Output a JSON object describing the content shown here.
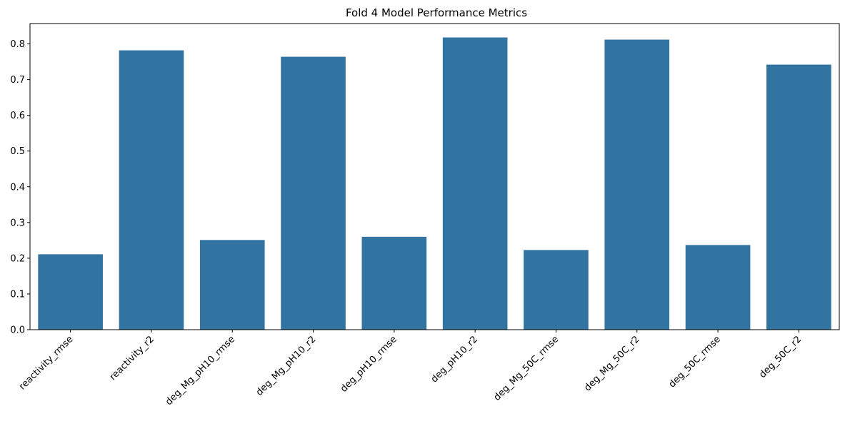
{
  "chart_data": {
    "type": "bar",
    "title": "Fold 4 Model Performance Metrics",
    "xlabel": "",
    "ylabel": "",
    "categories": [
      "reactivity_rmse",
      "reactivity_r2",
      "deg_Mg_pH10_rmse",
      "deg_Mg_pH10_r2",
      "deg_pH10_rmse",
      "deg_pH10_r2",
      "deg_Mg_50C_rmse",
      "deg_Mg_50C_r2",
      "deg_50C_rmse",
      "deg_50C_r2"
    ],
    "values": [
      0.211,
      0.782,
      0.251,
      0.764,
      0.26,
      0.818,
      0.223,
      0.812,
      0.237,
      0.742
    ],
    "ylim": [
      0,
      0.857
    ],
    "yticks": [
      0.0,
      0.1,
      0.2,
      0.3,
      0.4,
      0.5,
      0.6,
      0.7,
      0.8
    ],
    "ytick_labels": [
      "0.0",
      "0.1",
      "0.2",
      "0.3",
      "0.4",
      "0.5",
      "0.6",
      "0.7",
      "0.8"
    ],
    "bar_color": "#3274a1",
    "grid": false
  }
}
